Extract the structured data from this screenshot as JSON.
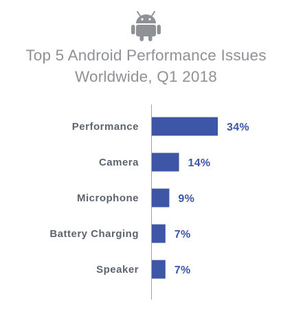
{
  "icon": "android-robot-icon",
  "colors": {
    "bar": "#3d56a6",
    "axis": "#9fa3a8",
    "title": "#8e9195",
    "category": "#5c6470",
    "icon": "#8e9195"
  },
  "chart_data": {
    "type": "bar",
    "orientation": "horizontal",
    "title_lines": [
      "Top 5 Android Performance Issues",
      "Worldwide, Q1 2018"
    ],
    "categories": [
      "Performance",
      "Camera",
      "Microphone",
      "Battery Charging",
      "Speaker"
    ],
    "values": [
      34,
      14,
      9,
      7,
      7
    ],
    "value_labels": [
      "34%",
      "14%",
      "9%",
      "7%",
      "7%"
    ],
    "unit": "%",
    "xlim": [
      0,
      100
    ],
    "grid": false,
    "legend": "none"
  }
}
